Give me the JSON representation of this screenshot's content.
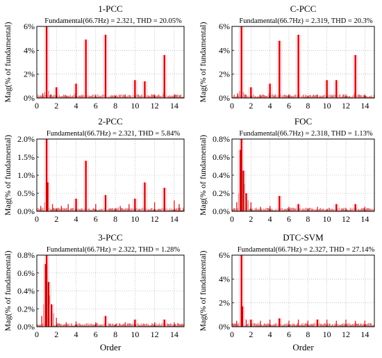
{
  "chart_data": [
    {
      "type": "bar",
      "title": "1-PCC",
      "annotation": "Fundamental(66.7Hz) = 2.321, THD = 20.05%",
      "ylabel": "Mag(% of fundamental)",
      "xlabel": "",
      "xlim": [
        0,
        15
      ],
      "ylim": [
        0,
        6
      ],
      "xticks": [
        0,
        2,
        4,
        6,
        8,
        10,
        12,
        14
      ],
      "yticks": [
        "0%",
        "2%",
        "4%",
        "6%"
      ],
      "grid": true,
      "color": "#cc0000",
      "peaks": [
        {
          "x": 1,
          "y": 6.0
        },
        {
          "x": 2,
          "y": 0.9
        },
        {
          "x": 4,
          "y": 1.2
        },
        {
          "x": 5,
          "y": 4.9
        },
        {
          "x": 7,
          "y": 5.3
        },
        {
          "x": 10,
          "y": 1.5
        },
        {
          "x": 11,
          "y": 1.4
        },
        {
          "x": 13,
          "y": 3.6
        }
      ],
      "noise": [
        {
          "x": 0.6,
          "y": 0.4
        },
        {
          "x": 0.8,
          "y": 0.5
        },
        {
          "x": 1.2,
          "y": 0.6
        },
        {
          "x": 1.4,
          "y": 0.3
        },
        {
          "x": 3.0,
          "y": 0.2
        },
        {
          "x": 3.9,
          "y": 0.4
        },
        {
          "x": 6.0,
          "y": 0.3
        },
        {
          "x": 8.0,
          "y": 0.2
        },
        {
          "x": 9.0,
          "y": 0.3
        },
        {
          "x": 12.0,
          "y": 0.3
        },
        {
          "x": 12.9,
          "y": 0.4
        },
        {
          "x": 14.0,
          "y": 0.3
        }
      ]
    },
    {
      "type": "bar",
      "title": "C-PCC",
      "annotation": "Fundamental(66.7Hz) = 2.319, THD = 20.3%",
      "ylabel": "Mag(% of fundamental)",
      "xlabel": "",
      "xlim": [
        0,
        15
      ],
      "ylim": [
        0,
        6
      ],
      "xticks": [
        0,
        2,
        4,
        6,
        8,
        10,
        12,
        14
      ],
      "yticks": [
        "0%",
        "2%",
        "4%",
        "6%"
      ],
      "grid": true,
      "color": "#cc0000",
      "peaks": [
        {
          "x": 1,
          "y": 6.0
        },
        {
          "x": 2,
          "y": 0.9
        },
        {
          "x": 4,
          "y": 1.2
        },
        {
          "x": 5,
          "y": 4.8
        },
        {
          "x": 7,
          "y": 5.3
        },
        {
          "x": 10,
          "y": 1.5
        },
        {
          "x": 11,
          "y": 1.5
        },
        {
          "x": 13,
          "y": 3.6
        }
      ],
      "noise": [
        {
          "x": 0.6,
          "y": 0.4
        },
        {
          "x": 0.8,
          "y": 0.6
        },
        {
          "x": 1.2,
          "y": 0.5
        },
        {
          "x": 1.4,
          "y": 0.3
        },
        {
          "x": 3.0,
          "y": 0.2
        },
        {
          "x": 3.9,
          "y": 0.4
        },
        {
          "x": 6.0,
          "y": 0.3
        },
        {
          "x": 8.0,
          "y": 0.2
        },
        {
          "x": 9.0,
          "y": 0.3
        },
        {
          "x": 12.0,
          "y": 0.3
        },
        {
          "x": 12.9,
          "y": 0.4
        },
        {
          "x": 14.0,
          "y": 0.3
        }
      ]
    },
    {
      "type": "bar",
      "title": "2-PCC",
      "annotation": "Fundamental(66.7Hz) = 2.321, THD = 5.84%",
      "ylabel": "Mag(% of fundamental)",
      "xlabel": "",
      "xlim": [
        0,
        15
      ],
      "ylim": [
        0,
        2
      ],
      "xticks": [
        0,
        2,
        4,
        6,
        8,
        10,
        12,
        14
      ],
      "yticks": [
        "0.0%",
        "0.5%",
        "1.0%",
        "1.5%",
        "2.0%"
      ],
      "grid": true,
      "color": "#cc0000",
      "peaks": [
        {
          "x": 1,
          "y": 2.0
        },
        {
          "x": 1.1,
          "y": 0.8
        },
        {
          "x": 4,
          "y": 0.35
        },
        {
          "x": 5,
          "y": 1.4
        },
        {
          "x": 7,
          "y": 0.45
        },
        {
          "x": 10,
          "y": 0.35
        },
        {
          "x": 11,
          "y": 0.8
        },
        {
          "x": 13,
          "y": 0.65
        }
      ],
      "noise": [
        {
          "x": 0.4,
          "y": 0.15
        },
        {
          "x": 0.8,
          "y": 0.25
        },
        {
          "x": 1.6,
          "y": 0.2
        },
        {
          "x": 2.5,
          "y": 0.15
        },
        {
          "x": 3.2,
          "y": 0.2
        },
        {
          "x": 6.0,
          "y": 0.2
        },
        {
          "x": 8.5,
          "y": 0.15
        },
        {
          "x": 9.4,
          "y": 0.2
        },
        {
          "x": 12.0,
          "y": 0.25
        },
        {
          "x": 14.0,
          "y": 0.3
        },
        {
          "x": 14.5,
          "y": 0.2
        }
      ]
    },
    {
      "type": "bar",
      "title": "FOC",
      "annotation": "Fundamental(66.7Hz) = 2.318, THD = 1.13%",
      "ylabel": "Mag(% of fundamental)",
      "xlabel": "",
      "xlim": [
        0,
        15
      ],
      "ylim": [
        0,
        0.8
      ],
      "xticks": [
        0,
        2,
        4,
        6,
        8,
        10,
        12,
        14
      ],
      "yticks": [
        "0.0%",
        "0.2%",
        "0.4%",
        "0.6%",
        "0.8%"
      ],
      "grid": true,
      "color": "#cc0000",
      "peaks": [
        {
          "x": 1,
          "y": 0.8
        },
        {
          "x": 0.9,
          "y": 0.68
        },
        {
          "x": 1.2,
          "y": 0.45
        },
        {
          "x": 1.5,
          "y": 0.2
        },
        {
          "x": 5,
          "y": 0.17
        },
        {
          "x": 7,
          "y": 0.08
        },
        {
          "x": 11,
          "y": 0.08
        },
        {
          "x": 13,
          "y": 0.08
        }
      ],
      "noise": [
        {
          "x": 0.5,
          "y": 0.1
        },
        {
          "x": 0.7,
          "y": 0.2
        },
        {
          "x": 1.3,
          "y": 0.3
        },
        {
          "x": 1.7,
          "y": 0.12
        },
        {
          "x": 2.0,
          "y": 0.1
        },
        {
          "x": 3.0,
          "y": 0.05
        },
        {
          "x": 4.0,
          "y": 0.06
        },
        {
          "x": 6.0,
          "y": 0.05
        },
        {
          "x": 9.0,
          "y": 0.05
        },
        {
          "x": 12.0,
          "y": 0.04
        },
        {
          "x": 14.0,
          "y": 0.05
        }
      ]
    },
    {
      "type": "bar",
      "title": "3-PCC",
      "annotation": "Fundamental(66.7Hz) = 2.322, THD = 1.28%",
      "ylabel": "Mag(% of fundamental)",
      "xlabel": "Order",
      "xlim": [
        0,
        15
      ],
      "ylim": [
        0,
        0.8
      ],
      "xticks": [
        0,
        2,
        4,
        6,
        8,
        10,
        12,
        14
      ],
      "yticks": [
        "0.0%",
        "0.2%",
        "0.4%",
        "0.6%",
        "0.8%"
      ],
      "grid": true,
      "color": "#cc0000",
      "peaks": [
        {
          "x": 1,
          "y": 0.8
        },
        {
          "x": 0.9,
          "y": 0.7
        },
        {
          "x": 1.2,
          "y": 0.5
        },
        {
          "x": 1.5,
          "y": 0.25
        },
        {
          "x": 7,
          "y": 0.12
        },
        {
          "x": 10,
          "y": 0.08
        },
        {
          "x": 13,
          "y": 0.08
        }
      ],
      "noise": [
        {
          "x": 0.5,
          "y": 0.12
        },
        {
          "x": 0.7,
          "y": 0.25
        },
        {
          "x": 1.3,
          "y": 0.35
        },
        {
          "x": 1.7,
          "y": 0.15
        },
        {
          "x": 2.0,
          "y": 0.1
        },
        {
          "x": 3.0,
          "y": 0.05
        },
        {
          "x": 4.0,
          "y": 0.06
        },
        {
          "x": 6.0,
          "y": 0.05
        },
        {
          "x": 9.0,
          "y": 0.05
        },
        {
          "x": 12.0,
          "y": 0.05
        },
        {
          "x": 14.0,
          "y": 0.05
        }
      ]
    },
    {
      "type": "bar",
      "title": "DTC-SVM",
      "annotation": "Fundamental(66.7Hz) = 2.327, THD = 27.14%",
      "ylabel": "Mag(% of fundamental)",
      "xlabel": "Order",
      "xlim": [
        0,
        15
      ],
      "ylim": [
        0,
        6
      ],
      "xticks": [
        0,
        2,
        4,
        6,
        8,
        10,
        12,
        14
      ],
      "yticks": [
        "0%",
        "2%",
        "4%",
        "6%"
      ],
      "grid": true,
      "color": "#cc0000",
      "peaks": [
        {
          "x": 1,
          "y": 6.0
        },
        {
          "x": 1.1,
          "y": 1.7
        },
        {
          "x": 2,
          "y": 0.6
        },
        {
          "x": 5,
          "y": 0.7
        },
        {
          "x": 9,
          "y": 0.6
        }
      ],
      "noise": [
        {
          "x": 0.5,
          "y": 0.5
        },
        {
          "x": 1.5,
          "y": 0.6
        },
        {
          "x": 3.0,
          "y": 0.5
        },
        {
          "x": 4.0,
          "y": 0.6
        },
        {
          "x": 6.0,
          "y": 0.5
        },
        {
          "x": 7.0,
          "y": 0.6
        },
        {
          "x": 8.0,
          "y": 0.5
        },
        {
          "x": 10.0,
          "y": 0.6
        },
        {
          "x": 11.0,
          "y": 0.5
        },
        {
          "x": 12.0,
          "y": 0.6
        },
        {
          "x": 13.0,
          "y": 0.5
        },
        {
          "x": 14.0,
          "y": 0.5
        }
      ]
    }
  ]
}
